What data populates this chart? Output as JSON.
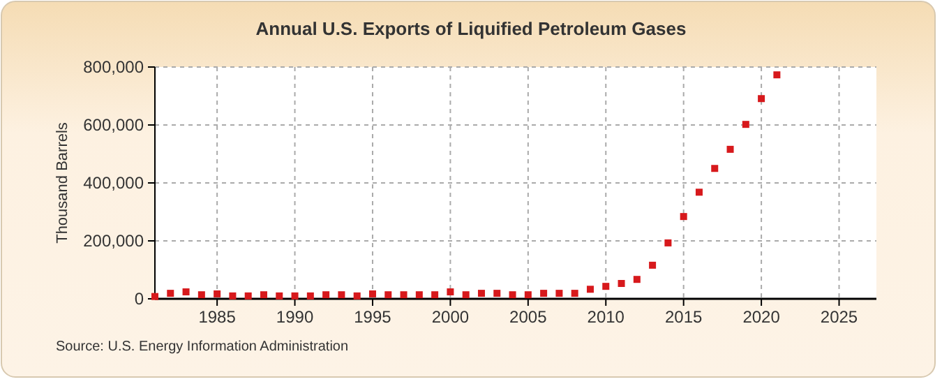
{
  "chart_data": {
    "type": "scatter",
    "title": "Annual U.S. Exports of Liquified Petroleum Gases",
    "ylabel": "Thousand Barrels",
    "annotations": [
      "Source: U.S. Energy Information Administration"
    ],
    "x": [
      1981,
      1982,
      1983,
      1984,
      1985,
      1986,
      1987,
      1988,
      1989,
      1990,
      1991,
      1992,
      1993,
      1994,
      1995,
      1996,
      1997,
      1998,
      1999,
      2000,
      2001,
      2002,
      2003,
      2004,
      2005,
      2006,
      2007,
      2008,
      2009,
      2010,
      2011,
      2012,
      2013,
      2014,
      2015,
      2016,
      2017,
      2018,
      2019,
      2020,
      2021
    ],
    "series": [
      {
        "color": "#d7191c",
        "values": [
          8000,
          19000,
          24000,
          14000,
          17000,
          10000,
          10000,
          14000,
          10000,
          10000,
          10000,
          14000,
          14000,
          10000,
          17000,
          14000,
          14000,
          14000,
          14000,
          24000,
          14000,
          19000,
          19000,
          14000,
          14000,
          19000,
          19000,
          19000,
          33000,
          43000,
          53000,
          67000,
          116000,
          193000,
          284000,
          368000,
          450000,
          516000,
          602000,
          691000,
          773000
        ]
      }
    ],
    "xlim": [
      1981,
      2027.4
    ],
    "xticks": [
      1985,
      1990,
      1995,
      2000,
      2005,
      2010,
      2015,
      2020,
      2025
    ],
    "ylim": [
      0,
      800000
    ],
    "yticks": [
      {
        "value": 0,
        "label": "0"
      },
      {
        "value": 200000,
        "label": "200,000"
      },
      {
        "value": 400000,
        "label": "400,000"
      },
      {
        "value": 600000,
        "label": "600,000"
      },
      {
        "value": 800000,
        "label": "800,000"
      }
    ],
    "grid": true,
    "marker": "square"
  }
}
